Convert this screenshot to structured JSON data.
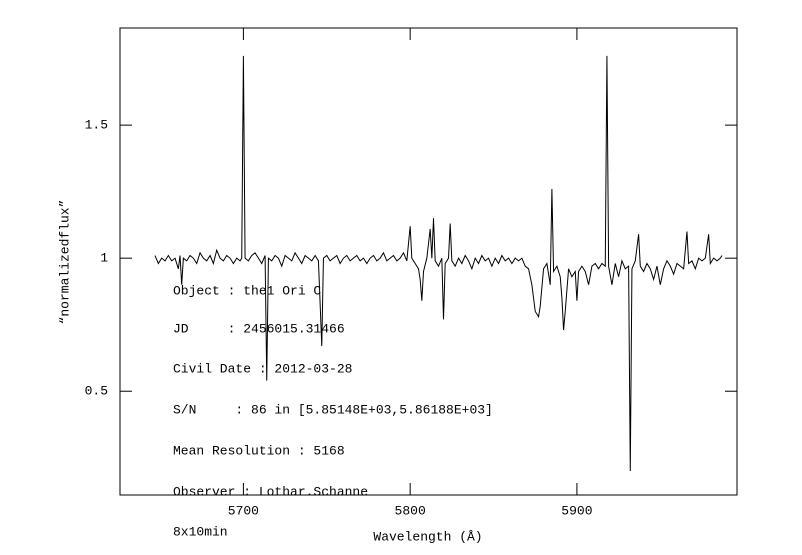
{
  "chart_data": {
    "type": "line",
    "ylabel": "“normalizedflux”",
    "xlabel": "Wavelength (Å)",
    "annotations": [
      "Object : the1 Ori C",
      "JD     : 2456015.31466",
      "Civil Date : 2012-03-28",
      "S/N     : 86 in [5.85148E+03,5.86188E+03]",
      "Mean Resolution : 5168",
      "Observer : Lothar.Schanne",
      "8x10min"
    ],
    "xlim": [
      5626,
      5996
    ],
    "ylim": [
      0.11,
      1.865
    ],
    "xticks": [
      5700,
      5800,
      5900
    ],
    "yticks": [
      0.5,
      1,
      1.5
    ],
    "color": "#000000",
    "x": [
      5647,
      5649,
      5651,
      5653,
      5655,
      5657,
      5659,
      5661,
      5662,
      5663,
      5664,
      5666,
      5668,
      5670,
      5672,
      5674,
      5676,
      5678,
      5680,
      5682,
      5684,
      5686,
      5688,
      5690,
      5692,
      5694,
      5696,
      5698,
      5699,
      5700,
      5701,
      5703,
      5705,
      5707,
      5709,
      5711,
      5713,
      5714,
      5715,
      5717,
      5719,
      5721,
      5723,
      5725,
      5727,
      5729,
      5731,
      5733,
      5735,
      5737,
      5739,
      5741,
      5743,
      5745,
      5747,
      5748,
      5750,
      5752,
      5754,
      5756,
      5758,
      5760,
      5762,
      5764,
      5766,
      5768,
      5770,
      5772,
      5774,
      5776,
      5778,
      5780,
      5782,
      5784,
      5786,
      5788,
      5790,
      5792,
      5794,
      5796,
      5798,
      5800,
      5801,
      5803,
      5805,
      5806,
      5807,
      5808,
      5810,
      5812,
      5813,
      5814,
      5815,
      5817,
      5819,
      5820,
      5821,
      5823,
      5824,
      5825,
      5827,
      5829,
      5831,
      5833,
      5835,
      5837,
      5839,
      5841,
      5843,
      5845,
      5847,
      5849,
      5851,
      5853,
      5855,
      5857,
      5859,
      5861,
      5863,
      5865,
      5867,
      5869,
      5871,
      5873,
      5875,
      5877,
      5878,
      5880,
      5882,
      5884,
      5885,
      5886,
      5888,
      5890,
      5891,
      5892,
      5893,
      5895,
      5897,
      5899,
      5900,
      5901,
      5903,
      5905,
      5907,
      5909,
      5911,
      5913,
      5915,
      5917,
      5918,
      5919,
      5921,
      5923,
      5925,
      5927,
      5929,
      5931,
      5932,
      5933,
      5935,
      5937,
      5938,
      5940,
      5942,
      5944,
      5946,
      5948,
      5950,
      5952,
      5954,
      5956,
      5958,
      5960,
      5962,
      5964,
      5966,
      5967,
      5969,
      5971,
      5973,
      5975,
      5977,
      5979,
      5980,
      5982,
      5984,
      5986,
      5987
    ],
    "values": [
      1.01,
      0.98,
      1.0,
      0.99,
      1.01,
      0.99,
      1.0,
      0.96,
      1.01,
      0.9,
      1.0,
      0.99,
      1.01,
      1.0,
      0.98,
      1.02,
      1.0,
      0.99,
      1.01,
      0.98,
      1.03,
      1.0,
      0.99,
      1.01,
      1.0,
      0.98,
      1.0,
      0.99,
      1.0,
      1.76,
      1.0,
      0.99,
      1.01,
      1.02,
      1.0,
      0.98,
      1.01,
      0.54,
      1.0,
      0.99,
      1.01,
      1.0,
      0.97,
      1.01,
      1.0,
      0.99,
      1.02,
      1.0,
      0.98,
      1.01,
      1.0,
      0.99,
      1.01,
      0.99,
      0.67,
      1.0,
      1.01,
      0.99,
      1.0,
      1.01,
      0.98,
      1.0,
      1.01,
      0.99,
      1.0,
      1.01,
      0.99,
      1.0,
      0.98,
      1.0,
      1.01,
      0.99,
      1.0,
      1.02,
      0.99,
      1.0,
      1.01,
      0.99,
      1.0,
      1.02,
      0.99,
      1.12,
      1.0,
      0.98,
      0.96,
      0.92,
      0.84,
      0.95,
      1.0,
      1.11,
      1.0,
      1.15,
      0.99,
      0.97,
      1.0,
      0.77,
      0.98,
      1.0,
      1.13,
      0.99,
      0.97,
      1.0,
      0.98,
      1.01,
      0.99,
      0.96,
      1.0,
      0.98,
      1.01,
      0.99,
      1.0,
      0.97,
      1.0,
      0.98,
      1.01,
      0.99,
      1.0,
      0.98,
      1.0,
      0.99,
      1.0,
      0.97,
      0.96,
      0.9,
      0.8,
      0.78,
      0.82,
      0.96,
      0.98,
      0.9,
      1.26,
      0.95,
      0.97,
      0.93,
      0.85,
      0.73,
      0.8,
      0.96,
      0.93,
      0.95,
      0.84,
      0.95,
      0.97,
      0.95,
      0.9,
      0.97,
      0.98,
      0.96,
      0.98,
      0.97,
      1.76,
      0.97,
      0.9,
      0.98,
      0.93,
      0.99,
      0.96,
      0.97,
      0.2,
      0.96,
      0.99,
      1.09,
      0.97,
      0.95,
      0.98,
      0.96,
      0.92,
      0.97,
      0.9,
      0.96,
      0.99,
      0.97,
      0.94,
      0.98,
      0.97,
      0.96,
      1.1,
      0.98,
      0.99,
      0.96,
      1.0,
      0.99,
      1.0,
      1.09,
      0.98,
      1.0,
      0.99,
      1.0,
      1.01
    ]
  }
}
